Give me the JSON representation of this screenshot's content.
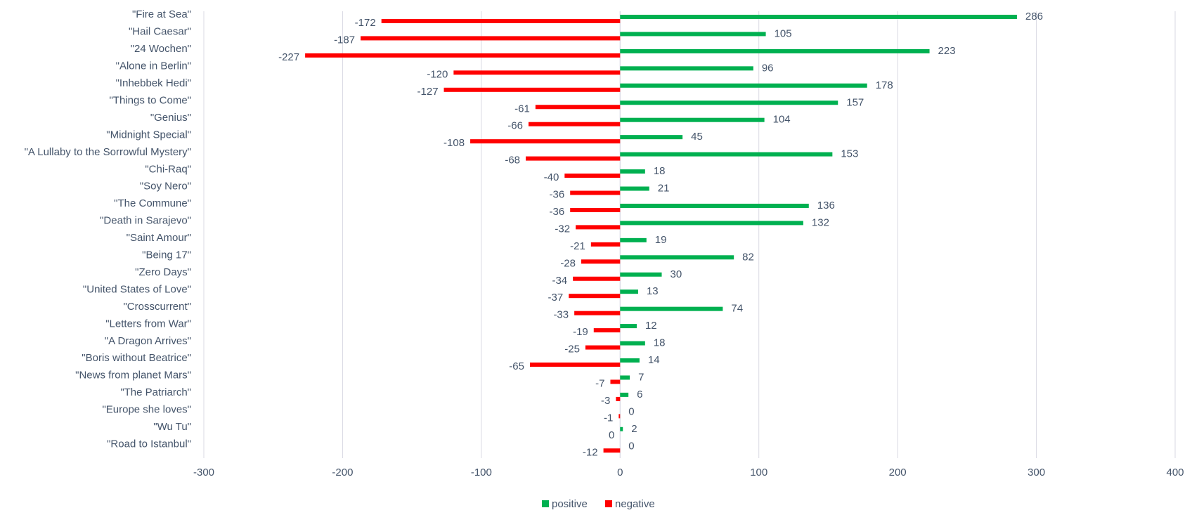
{
  "chart_data": {
    "type": "bar",
    "orientation": "horizontal",
    "categories": [
      "\"Fire at Sea\"",
      "\"Hail Caesar\"",
      "\"24 Wochen\"",
      "\"Alone in Berlin\"",
      "\"Inhebbek Hedi\"",
      "\"Things to Come\"",
      "\"Genius\"",
      "\"Midnight Special\"",
      "\"A Lullaby to the Sorrowful Mystery\"",
      "\"Chi-Raq\"",
      "\"Soy Nero\"",
      "\"The Commune\"",
      "\"Death in Sarajevo\"",
      "\"Saint Amour\"",
      "\"Being 17\"",
      "\"Zero Days\"",
      "\"United States of Love\"",
      "\"Crosscurrent\"",
      "\"Letters from War\"",
      "\"A Dragon Arrives\"",
      "\"Boris without Beatrice\"",
      "\"News from planet Mars\"",
      "\"The Patriarch\"",
      "\"Europe she loves\"",
      "\"Wu Tu\"",
      "\"Road to Istanbul\""
    ],
    "series": [
      {
        "name": "positive",
        "color": "#00b050",
        "values": [
          286,
          105,
          223,
          96,
          178,
          157,
          104,
          45,
          153,
          18,
          21,
          136,
          132,
          19,
          82,
          30,
          13,
          74,
          12,
          18,
          14,
          7,
          6,
          0,
          2,
          0
        ]
      },
      {
        "name": "negative",
        "color": "#ff0000",
        "values": [
          -172,
          -187,
          -227,
          -120,
          -127,
          -61,
          -66,
          -108,
          -68,
          -40,
          -36,
          -36,
          -32,
          -21,
          -28,
          -34,
          -37,
          -33,
          -19,
          -25,
          -65,
          -7,
          -3,
          -1,
          0,
          -12
        ]
      }
    ],
    "xlim": [
      -300,
      400
    ],
    "xticks": [
      "-300",
      "-200",
      "-100",
      "0",
      "100",
      "200",
      "300",
      "400"
    ],
    "xtick_values": [
      -300,
      -200,
      -100,
      0,
      100,
      200,
      300,
      400
    ],
    "grid": true,
    "legend_position": "bottom",
    "title": "",
    "xlabel": "",
    "ylabel": ""
  }
}
